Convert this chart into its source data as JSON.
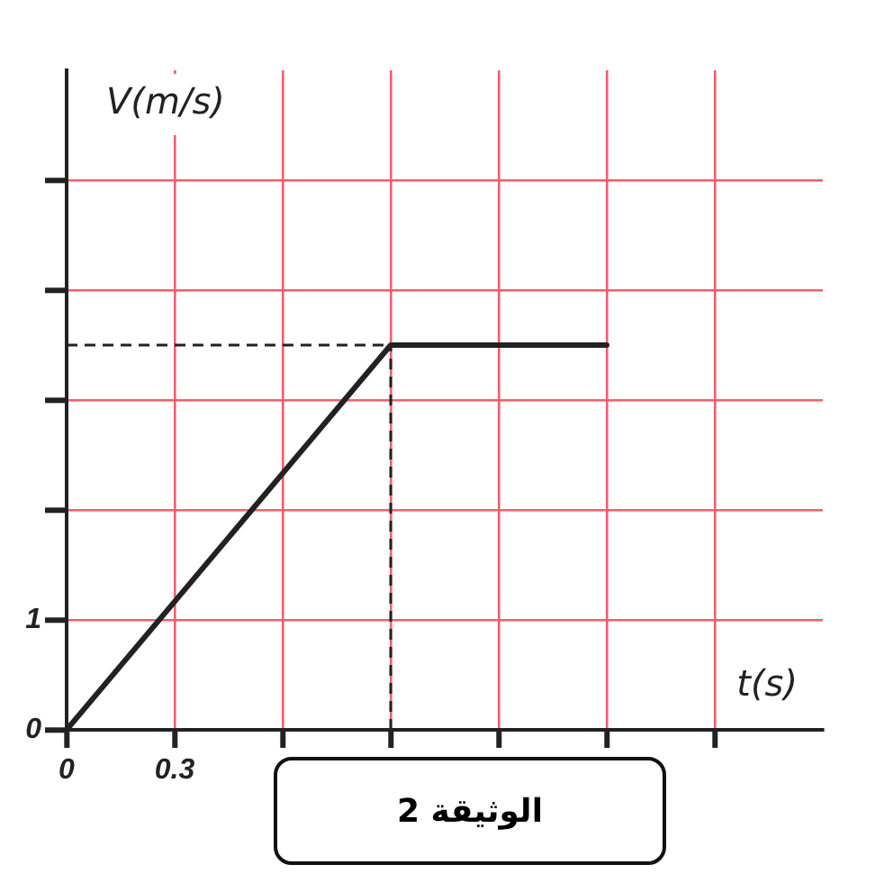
{
  "chart_data": {
    "type": "line",
    "xlabel": "t(s)",
    "ylabel": "V(m/s)",
    "x": [
      0,
      0.9,
      1.5
    ],
    "series": [
      {
        "color": "#222222",
        "values": [
          0,
          3.5,
          3.5
        ]
      }
    ],
    "xlim": [
      0,
      2.1
    ],
    "xticks": [
      0,
      0.3,
      {
        "value": 0.6,
        "label": null
      },
      {
        "value": 0.9,
        "label": null
      },
      {
        "value": 1.2,
        "label": null
      },
      {
        "value": 1.5,
        "label": null
      },
      {
        "value": 1.8,
        "label": null
      }
    ],
    "ylim": [
      0,
      6
    ],
    "yticks": [
      0,
      1,
      {
        "value": 2,
        "label": null
      },
      {
        "value": 3,
        "label": null
      },
      {
        "value": 4,
        "label": null
      },
      {
        "value": 5,
        "label": null
      }
    ],
    "grid": true,
    "marker": "none",
    "line_style": "solid",
    "ref_lines": [
      {
        "axis": "y",
        "value": 3.5,
        "line_style": "dashed",
        "color": "#222222"
      },
      {
        "axis": "x",
        "value": 0.9,
        "line_style": "dashed",
        "color": "#222222"
      }
    ],
    "annotations": [
      "الوثيقة 2"
    ]
  }
}
